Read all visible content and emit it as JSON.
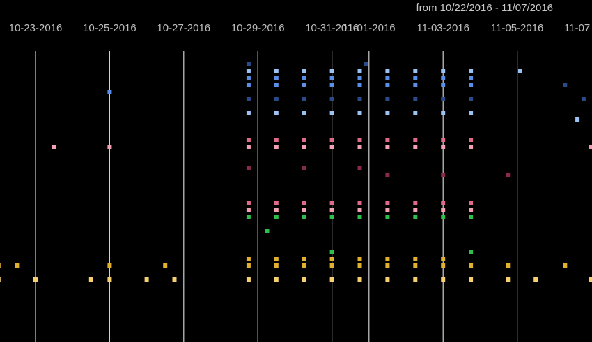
{
  "header": {
    "date_range": "from 10/22/2016 - 11/07/2016"
  },
  "chart_data": {
    "type": "heatmap",
    "title": "",
    "xlabel": "",
    "ylabel": "",
    "x_range": [
      "2016-10-22",
      "2016-11-07"
    ],
    "tick_labels": [
      "10-23-2016",
      "10-25-2016",
      "10-27-2016",
      "10-29-2016",
      "10-31-2016",
      "11-01-2016",
      "11-03-2016",
      "11-05-2016",
      "11-07"
    ],
    "tick_dates": [
      "2016-10-23",
      "2016-10-25",
      "2016-10-27",
      "2016-10-29",
      "2016-10-31",
      "2016-11-01",
      "2016-11-03",
      "2016-11-05",
      "2016-11-07"
    ],
    "colors": {
      "blue": "#5b8ee6",
      "light_blue": "#9cc2f5",
      "navy": "#2a4a8a",
      "pink": "#e06a8a",
      "light_pink": "#f2a0b4",
      "maroon": "#8a2a4a",
      "green": "#2fbf4a",
      "gold": "#e0b030",
      "light_gold": "#f5d070"
    },
    "series": [
      {
        "color": "navy",
        "points": [
          [
            "2016-10-28T18:00",
            1
          ],
          [
            "2016-10-31T22:00",
            1
          ],
          [
            "2016-11-06T07:00",
            4
          ],
          [
            "2016-11-06T19:00",
            6
          ]
        ]
      },
      {
        "color": "light_blue",
        "points": [
          [
            "2016-10-28T18:00",
            2
          ],
          [
            "2016-10-29T12:00",
            2
          ],
          [
            "2016-10-30T06:00",
            2
          ],
          [
            "2016-10-31T00:00",
            2
          ],
          [
            "2016-10-31T18:00",
            2
          ],
          [
            "2016-11-01T12:00",
            2
          ],
          [
            "2016-11-02T06:00",
            2
          ],
          [
            "2016-11-03T00:00",
            2
          ],
          [
            "2016-11-03T18:00",
            2
          ],
          [
            "2016-11-05T02:00",
            2
          ]
        ]
      },
      {
        "color": "blue",
        "points": [
          [
            "2016-10-28T18:00",
            3
          ],
          [
            "2016-10-29T12:00",
            3
          ],
          [
            "2016-10-30T06:00",
            3
          ],
          [
            "2016-10-31T00:00",
            3
          ],
          [
            "2016-10-31T18:00",
            3
          ],
          [
            "2016-11-01T12:00",
            3
          ],
          [
            "2016-11-02T06:00",
            3
          ],
          [
            "2016-11-03T00:00",
            3
          ],
          [
            "2016-11-03T18:00",
            3
          ]
        ]
      },
      {
        "color": "blue",
        "points": [
          [
            "2016-10-28T18:00",
            4
          ],
          [
            "2016-10-29T12:00",
            4
          ],
          [
            "2016-10-30T06:00",
            4
          ],
          [
            "2016-10-31T00:00",
            4
          ],
          [
            "2016-10-31T18:00",
            4
          ],
          [
            "2016-11-01T12:00",
            4
          ],
          [
            "2016-11-02T06:00",
            4
          ],
          [
            "2016-11-03T00:00",
            4
          ],
          [
            "2016-11-03T18:00",
            4
          ],
          [
            "2016-10-25T00:00",
            5
          ]
        ]
      },
      {
        "color": "navy",
        "points": [
          [
            "2016-10-28T18:00",
            6
          ],
          [
            "2016-10-29T12:00",
            6
          ],
          [
            "2016-10-30T06:00",
            6
          ],
          [
            "2016-10-31T00:00",
            6
          ],
          [
            "2016-10-31T18:00",
            6
          ],
          [
            "2016-11-01T12:00",
            6
          ],
          [
            "2016-11-02T06:00",
            6
          ],
          [
            "2016-11-03T00:00",
            6
          ],
          [
            "2016-11-03T18:00",
            6
          ]
        ]
      },
      {
        "color": "light_blue",
        "points": [
          [
            "2016-10-28T18:00",
            8
          ],
          [
            "2016-10-29T12:00",
            8
          ],
          [
            "2016-10-30T06:00",
            8
          ],
          [
            "2016-10-31T00:00",
            8
          ],
          [
            "2016-10-31T18:00",
            8
          ],
          [
            "2016-11-01T12:00",
            8
          ],
          [
            "2016-11-02T06:00",
            8
          ],
          [
            "2016-11-03T00:00",
            8
          ],
          [
            "2016-11-03T18:00",
            8
          ],
          [
            "2016-11-06T15:00",
            9
          ]
        ]
      },
      {
        "color": "pink",
        "points": [
          [
            "2016-10-28T18:00",
            12
          ],
          [
            "2016-10-29T12:00",
            12
          ],
          [
            "2016-10-30T06:00",
            12
          ],
          [
            "2016-10-31T00:00",
            12
          ],
          [
            "2016-10-31T18:00",
            12
          ],
          [
            "2016-11-01T12:00",
            12
          ],
          [
            "2016-11-02T06:00",
            12
          ],
          [
            "2016-11-03T00:00",
            12
          ],
          [
            "2016-11-03T18:00",
            12
          ]
        ]
      },
      {
        "color": "light_pink",
        "points": [
          [
            "2016-10-23T12:00",
            13
          ],
          [
            "2016-10-25T00:00",
            13
          ],
          [
            "2016-10-28T18:00",
            13
          ],
          [
            "2016-10-29T12:00",
            13
          ],
          [
            "2016-10-30T06:00",
            13
          ],
          [
            "2016-10-31T00:00",
            13
          ],
          [
            "2016-10-31T18:00",
            13
          ],
          [
            "2016-11-01T12:00",
            13
          ],
          [
            "2016-11-02T06:00",
            13
          ],
          [
            "2016-11-03T00:00",
            13
          ],
          [
            "2016-11-03T18:00",
            13
          ],
          [
            "2016-11-07T00:00",
            13
          ]
        ]
      },
      {
        "color": "maroon",
        "points": [
          [
            "2016-10-28T18:00",
            16
          ],
          [
            "2016-10-30T06:00",
            16
          ],
          [
            "2016-10-31T18:00",
            16
          ],
          [
            "2016-11-01T12:00",
            17
          ],
          [
            "2016-11-03T00:00",
            17
          ],
          [
            "2016-11-04T18:00",
            17
          ]
        ]
      },
      {
        "color": "pink",
        "points": [
          [
            "2016-10-28T18:00",
            21
          ],
          [
            "2016-10-29T12:00",
            21
          ],
          [
            "2016-10-30T06:00",
            21
          ],
          [
            "2016-10-31T00:00",
            21
          ],
          [
            "2016-10-31T18:00",
            21
          ],
          [
            "2016-11-01T12:00",
            21
          ],
          [
            "2016-11-02T06:00",
            21
          ],
          [
            "2016-11-03T00:00",
            21
          ],
          [
            "2016-11-03T18:00",
            21
          ]
        ]
      },
      {
        "color": "light_pink",
        "points": [
          [
            "2016-10-28T18:00",
            22
          ],
          [
            "2016-10-29T12:00",
            22
          ],
          [
            "2016-10-30T06:00",
            22
          ],
          [
            "2016-10-31T00:00",
            22
          ],
          [
            "2016-10-31T18:00",
            22
          ],
          [
            "2016-11-01T12:00",
            22
          ],
          [
            "2016-11-02T06:00",
            22
          ],
          [
            "2016-11-03T00:00",
            22
          ],
          [
            "2016-11-03T18:00",
            22
          ]
        ]
      },
      {
        "color": "green",
        "points": [
          [
            "2016-10-28T18:00",
            23
          ],
          [
            "2016-10-29T12:00",
            23
          ],
          [
            "2016-10-30T06:00",
            23
          ],
          [
            "2016-10-31T00:00",
            23
          ],
          [
            "2016-10-31T18:00",
            23
          ],
          [
            "2016-11-01T12:00",
            23
          ],
          [
            "2016-11-02T06:00",
            23
          ],
          [
            "2016-11-03T00:00",
            23
          ],
          [
            "2016-11-03T18:00",
            23
          ],
          [
            "2016-10-29T06:00",
            25
          ],
          [
            "2016-10-31T00:00",
            28
          ],
          [
            "2016-11-03T18:00",
            28
          ]
        ]
      },
      {
        "color": "gold",
        "points": [
          [
            "2016-10-28T18:00",
            29
          ],
          [
            "2016-10-29T12:00",
            29
          ],
          [
            "2016-10-30T06:00",
            29
          ],
          [
            "2016-10-31T00:00",
            29
          ],
          [
            "2016-10-31T18:00",
            29
          ],
          [
            "2016-11-01T12:00",
            29
          ],
          [
            "2016-11-02T06:00",
            29
          ],
          [
            "2016-11-03T00:00",
            29
          ]
        ]
      },
      {
        "color": "gold",
        "points": [
          [
            "2016-10-22T00:00",
            30
          ],
          [
            "2016-10-22T12:00",
            30
          ],
          [
            "2016-10-25T00:00",
            30
          ],
          [
            "2016-10-26T12:00",
            30
          ],
          [
            "2016-10-28T18:00",
            30
          ],
          [
            "2016-10-29T12:00",
            30
          ],
          [
            "2016-10-30T06:00",
            30
          ],
          [
            "2016-10-31T00:00",
            30
          ],
          [
            "2016-10-31T18:00",
            30
          ],
          [
            "2016-11-01T12:00",
            30
          ],
          [
            "2016-11-02T06:00",
            30
          ],
          [
            "2016-11-03T00:00",
            30
          ],
          [
            "2016-11-03T18:00",
            30
          ],
          [
            "2016-11-04T18:00",
            30
          ],
          [
            "2016-11-06T07:00",
            30
          ]
        ]
      },
      {
        "color": "light_gold",
        "points": [
          [
            "2016-10-22T00:00",
            32
          ],
          [
            "2016-10-23T00:00",
            32
          ],
          [
            "2016-10-24T12:00",
            32
          ],
          [
            "2016-10-25T00:00",
            32
          ],
          [
            "2016-10-26T00:00",
            32
          ],
          [
            "2016-10-26T18:00",
            32
          ],
          [
            "2016-10-28T18:00",
            32
          ],
          [
            "2016-10-29T12:00",
            32
          ],
          [
            "2016-10-30T06:00",
            32
          ],
          [
            "2016-10-31T00:00",
            32
          ],
          [
            "2016-10-31T18:00",
            32
          ],
          [
            "2016-11-01T12:00",
            32
          ],
          [
            "2016-11-02T06:00",
            32
          ],
          [
            "2016-11-03T00:00",
            32
          ],
          [
            "2016-11-03T18:00",
            32
          ],
          [
            "2016-11-04T18:00",
            32
          ],
          [
            "2016-11-05T12:00",
            32
          ],
          [
            "2016-11-07T00:00",
            32
          ]
        ]
      }
    ]
  }
}
